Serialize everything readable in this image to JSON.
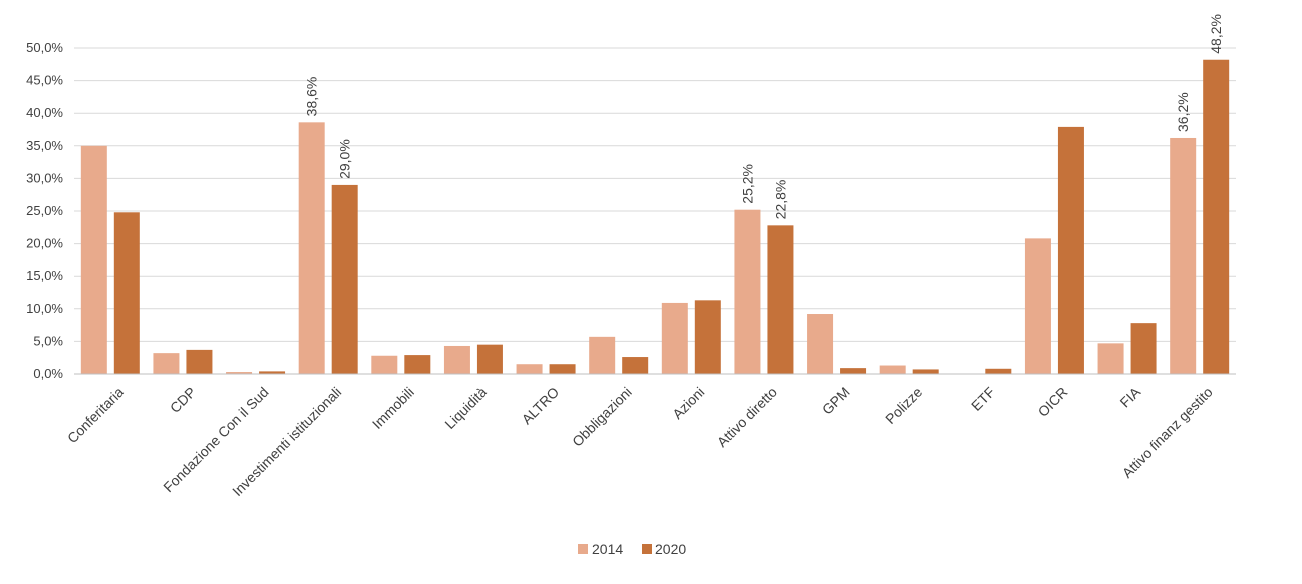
{
  "chart_data": {
    "type": "bar",
    "categories": [
      "Conferitaria",
      "CDP",
      "Fondazione Con il Sud",
      "Investimenti istituzionali",
      "Immobili",
      "Liquidità",
      "ALTRO",
      "Obbligazioni",
      "Azioni",
      "Attivo diretto",
      "GPM",
      "Polizze",
      "ETF",
      "OICR",
      "FIA",
      "Attivo finanz gestito"
    ],
    "series": [
      {
        "name": "2014",
        "color": "#e8aa8c",
        "values": [
          35.0,
          3.2,
          0.3,
          38.6,
          2.8,
          4.3,
          1.5,
          5.7,
          10.9,
          25.2,
          9.2,
          1.3,
          0.0,
          20.8,
          4.7,
          36.2
        ],
        "labels": [
          "",
          "",
          "",
          "38,6%",
          "",
          "",
          "",
          "",
          "",
          "25,2%",
          "",
          "",
          "",
          "",
          "",
          "36,2%"
        ]
      },
      {
        "name": "2020",
        "color": "#c5723a",
        "values": [
          24.8,
          3.7,
          0.4,
          29.0,
          2.9,
          4.5,
          1.5,
          2.6,
          11.3,
          22.8,
          0.9,
          0.7,
          0.8,
          37.9,
          7.8,
          48.2
        ],
        "labels": [
          "",
          "",
          "",
          "29,0%",
          "",
          "",
          "",
          "",
          "",
          "22,8%",
          "",
          "",
          "",
          "",
          "",
          "48,2%"
        ]
      }
    ],
    "yticks": [
      "0,0%",
      "5,0%",
      "10,0%",
      "15,0%",
      "20,0%",
      "25,0%",
      "30,0%",
      "35,0%",
      "40,0%",
      "45,0%",
      "50,0%"
    ],
    "ylim": [
      0,
      50
    ],
    "grid": true,
    "legend_position": "bottom-center",
    "title": "",
    "xlabel": "",
    "ylabel": ""
  }
}
